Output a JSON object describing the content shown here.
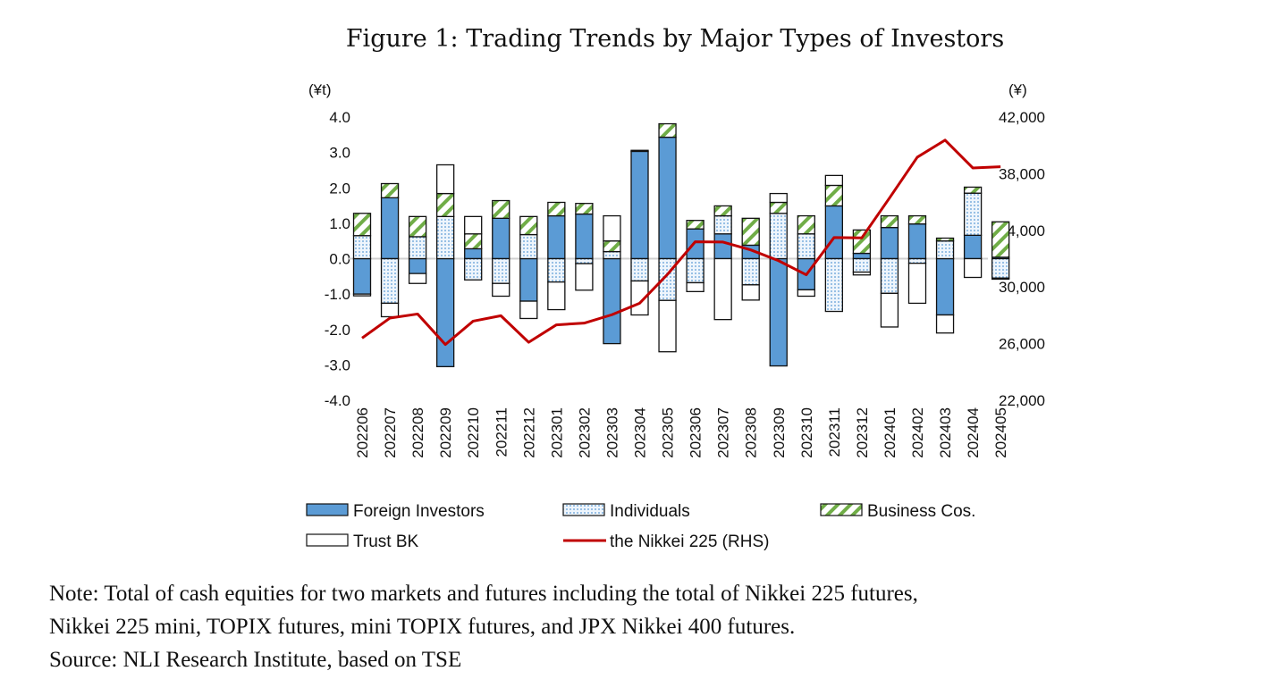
{
  "chart_data": {
    "type": "bar",
    "stacked": true,
    "title": "Figure 1: Trading Trends by Major Types of Investors",
    "y_unit_left": "(¥t)",
    "y_unit_right": "(¥)",
    "ylim": [
      -4.0,
      4.0
    ],
    "y_ticks": [
      "4.0",
      "3.0",
      "2.0",
      "1.0",
      "0.0",
      "-1.0",
      "-2.0",
      "-3.0",
      "-4.0"
    ],
    "y2lim": [
      22000,
      42000
    ],
    "y2_ticks": [
      "42,000",
      "38,000",
      "34,000",
      "30,000",
      "26,000",
      "22,000"
    ],
    "grid": false,
    "legend_position": "bottom",
    "categories": [
      "202206",
      "202207",
      "202208",
      "202209",
      "202210",
      "202211",
      "202212",
      "202301",
      "202302",
      "202303",
      "202304",
      "202305",
      "202306",
      "202307",
      "202308",
      "202309",
      "202310",
      "202311",
      "202312",
      "202401",
      "202402",
      "202403",
      "202404",
      "202405"
    ],
    "series": [
      {
        "name": "Foreign Investors",
        "color": "#5b9bd5",
        "values": [
          -1.0,
          1.72,
          -0.42,
          -3.05,
          0.28,
          1.14,
          -1.2,
          1.21,
          1.26,
          -2.4,
          3.03,
          3.43,
          0.84,
          0.7,
          0.38,
          -3.03,
          -0.88,
          1.49,
          0.15,
          0.88,
          0.98,
          -1.59,
          0.66,
          0.04
        ]
      },
      {
        "name": "Individuals",
        "color": "#deebf7",
        "values": [
          0.65,
          -1.26,
          0.62,
          1.19,
          -0.6,
          -0.7,
          0.68,
          -0.66,
          -0.14,
          0.2,
          -0.63,
          -1.18,
          -0.68,
          0.51,
          -0.74,
          1.28,
          0.7,
          -1.49,
          -0.38,
          -0.98,
          -0.13,
          0.5,
          1.19,
          -0.55
        ]
      },
      {
        "name": "Business Cos.",
        "color": "#70ad47",
        "values": [
          0.63,
          0.4,
          0.57,
          0.65,
          0.42,
          0.5,
          0.51,
          0.38,
          0.3,
          0.3,
          0.03,
          0.38,
          0.24,
          0.28,
          0.76,
          0.31,
          0.51,
          0.58,
          0.66,
          0.33,
          0.23,
          0.08,
          0.17,
          1.0
        ]
      },
      {
        "name": "Trust BK",
        "color": "#ffffff",
        "values": [
          -0.05,
          -0.38,
          -0.28,
          0.81,
          0.49,
          -0.36,
          -0.49,
          -0.78,
          -0.75,
          0.71,
          -0.96,
          -1.45,
          -0.25,
          -1.72,
          -0.43,
          0.25,
          -0.18,
          0.28,
          -0.08,
          -0.95,
          -1.13,
          -0.51,
          -0.53,
          -0.03
        ]
      },
      {
        "name": "the Nikkei 225 (RHS)",
        "type": "line",
        "axis": "right",
        "color": "#c00000",
        "values": [
          26393,
          27802,
          28092,
          25937,
          27587,
          27969,
          26095,
          27327,
          27446,
          28041,
          28856,
          30888,
          33189,
          33172,
          32619,
          31858,
          30859,
          33487,
          33464,
          36287,
          39166,
          40369,
          38406,
          38488
        ]
      }
    ]
  },
  "notes": [
    "Note: Total of cash equities for two markets and futures including the total of Nikkei 225 futures,",
    "Nikkei 225 mini, TOPIX futures, mini TOPIX futures, and JPX Nikkei 400 futures.",
    "Source: NLI Research Institute, based on TSE"
  ]
}
